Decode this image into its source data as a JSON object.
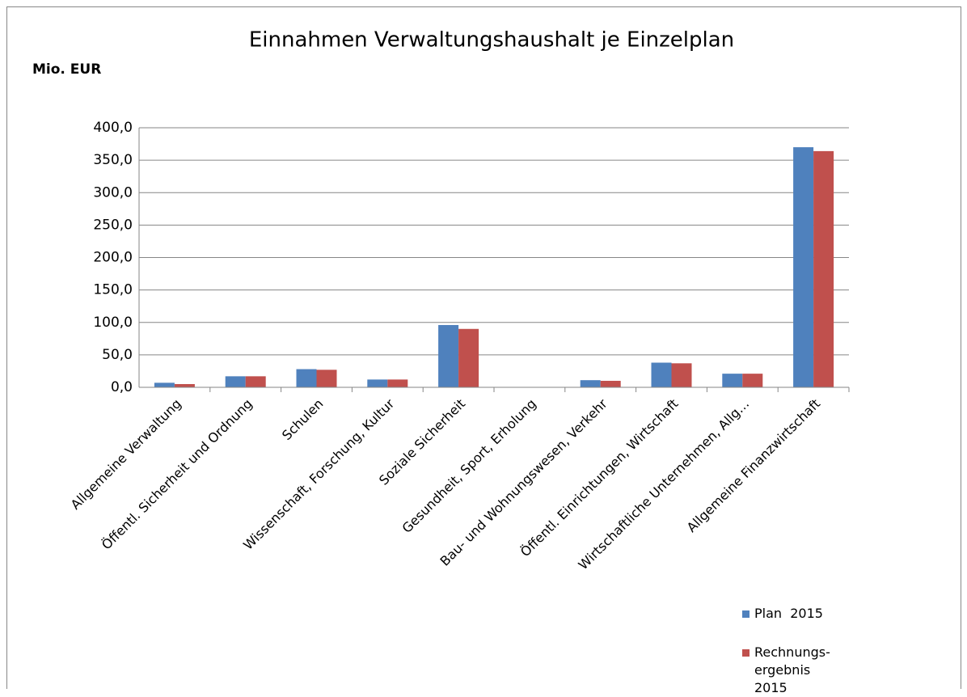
{
  "chart_data": {
    "type": "bar",
    "title": "Einnahmen Verwaltungshaushalt je Einzelplan",
    "y_label": "Mio. EUR",
    "categories": [
      "Allgemeine Verwaltung",
      "Öffentl. Sicherheit und Ordnung",
      "Schulen",
      "Wissenschaft, Forschung, Kultur",
      "Soziale Sicherheit",
      "Gesundheit, Sport, Erholung",
      "Bau- und Wohnungswesen, Verkehr",
      "Öffentl. Einrichtungen, Wirtschaft",
      "Wirtschaftliche Unternehmen, Allg…",
      "Allgemeine Finanzwirtschaft"
    ],
    "series": [
      {
        "name": "Plan  2015",
        "color": "#4f81bd",
        "values": [
          7,
          17,
          28,
          12,
          96,
          0,
          11,
          38,
          21,
          370
        ]
      },
      {
        "name": "Rechnungs- ergebnis 2015",
        "color": "#c0504d",
        "values": [
          5,
          17,
          27,
          12,
          90,
          0,
          10,
          37,
          21,
          364
        ]
      }
    ],
    "ylim": [
      0,
      400
    ],
    "yticks": [
      {
        "value": 0,
        "label": "0,0"
      },
      {
        "value": 50,
        "label": "50,0"
      },
      {
        "value": 100,
        "label": "100,0"
      },
      {
        "value": 150,
        "label": "150,0"
      },
      {
        "value": 200,
        "label": "200,0"
      },
      {
        "value": 250,
        "label": "250,0"
      },
      {
        "value": 300,
        "label": "300,0"
      },
      {
        "value": 350,
        "label": "350,0"
      },
      {
        "value": 400,
        "label": "400,0"
      }
    ],
    "grid": true
  }
}
